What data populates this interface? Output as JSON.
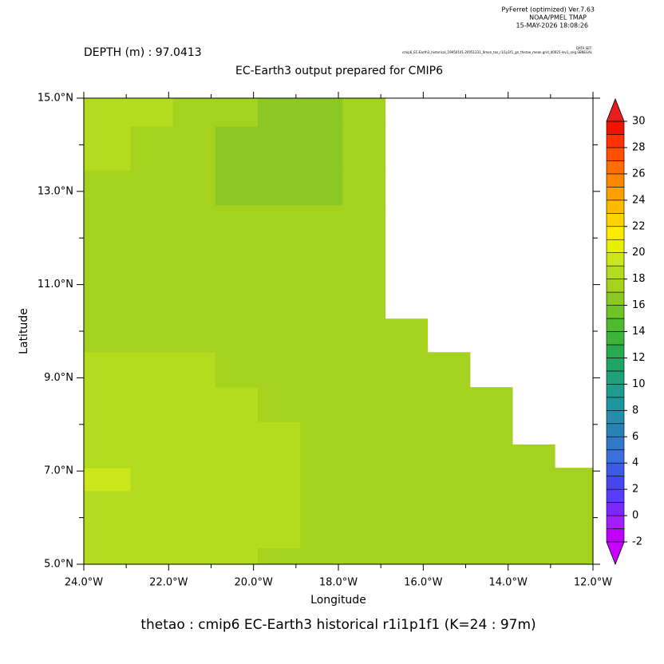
{
  "header": {
    "software": "PyFerret (optimized) Ver.7.63",
    "org": "NOAA/PMEL TMAP",
    "timestamp": "15-MAY-2026 18:08:26",
    "dataset_label": "DATA SET:",
    "dataset": "cmip6_EC-Earth3_historical_19950101-20051231_0mon_tos_r1i1p1f1_gn_thetao_mean.grid_d0025-lev1_orig.SENEGAL"
  },
  "chart_data": {
    "type": "heatmap",
    "depth_label": "DEPTH (m) : 97.0413",
    "title": "EC-Earth3 output prepared for CMIP6",
    "caption": "thetao : cmip6 EC-Earth3 historical r1i1p1f1   (K=24 : 97m)",
    "x_label": "Longitude",
    "y_label": "Latitude",
    "xlim": [
      -24,
      -12
    ],
    "ylim": [
      5,
      15
    ],
    "xticks": [
      {
        "value": -24,
        "label": "24.0°W"
      },
      {
        "value": -22,
        "label": "22.0°W"
      },
      {
        "value": -20,
        "label": "20.0°W"
      },
      {
        "value": -18,
        "label": "18.0°W"
      },
      {
        "value": -16,
        "label": "16.0°W"
      },
      {
        "value": -14,
        "label": "14.0°W"
      },
      {
        "value": -12,
        "label": "12.0°W"
      }
    ],
    "xminor": [
      -23,
      -21,
      -19,
      -17,
      -15,
      -13
    ],
    "yticks": [
      {
        "value": 5,
        "label": "5.0°N"
      },
      {
        "value": 7,
        "label": "7.0°N"
      },
      {
        "value": 9,
        "label": "9.0°N"
      },
      {
        "value": 11,
        "label": "11.0°N"
      },
      {
        "value": 13,
        "label": "13.0°N"
      },
      {
        "value": 15,
        "label": "15.0°N"
      }
    ],
    "yminor": [
      6,
      8,
      10,
      12,
      14
    ],
    "x_edges": [
      -24,
      -22.9,
      -21.9,
      -20.9,
      -19.9,
      -18.9,
      -17.9,
      -16.9,
      -15.9,
      -14.9,
      -13.9,
      -12.9,
      -12
    ],
    "y_edges": [
      5,
      5.35,
      6.58,
      7.07,
      7.57,
      8.06,
      8.8,
      9.55,
      10.27,
      12.71,
      13.46,
      14.4,
      15
    ],
    "z": [
      [
        18.5,
        18.5,
        18.5,
        18.5,
        17.5,
        17.5,
        17.5,
        17.5,
        17.5,
        17.5,
        17.5,
        17.5
      ],
      [
        18.5,
        18.5,
        18.5,
        18.5,
        18.5,
        17.5,
        17.5,
        17.5,
        17.5,
        17.5,
        17.5,
        17.5
      ],
      [
        19.5,
        18.5,
        18.5,
        18.5,
        18.5,
        17.5,
        17.5,
        17.5,
        17.5,
        17.5,
        17.5,
        17.5
      ],
      [
        18.5,
        18.5,
        18.5,
        18.5,
        18.5,
        17.5,
        17.5,
        17.5,
        17.5,
        17.5,
        17.5,
        null
      ],
      [
        18.5,
        18.5,
        18.5,
        18.5,
        18.5,
        17.5,
        17.5,
        17.5,
        17.5,
        17.5,
        null,
        null
      ],
      [
        18.5,
        18.5,
        18.5,
        18.5,
        17.5,
        17.5,
        17.5,
        17.5,
        17.5,
        17.5,
        null,
        null
      ],
      [
        18.5,
        18.5,
        18.5,
        17.5,
        17.5,
        17.5,
        17.5,
        17.5,
        17.5,
        null,
        null,
        null
      ],
      [
        17.5,
        17.5,
        17.5,
        17.5,
        17.5,
        17.5,
        17.5,
        17.5,
        null,
        null,
        null,
        null
      ],
      [
        17.5,
        17.5,
        17.5,
        17.5,
        17.5,
        17.5,
        17.5,
        null,
        null,
        null,
        null,
        null
      ],
      [
        17.5,
        17.5,
        17.5,
        16.5,
        16.5,
        16.5,
        17.5,
        null,
        null,
        null,
        null,
        null
      ],
      [
        18.5,
        17.5,
        17.5,
        16.5,
        16.5,
        16.5,
        17.5,
        null,
        null,
        null,
        null,
        null
      ],
      [
        18.5,
        18.5,
        17.5,
        17.5,
        16.5,
        16.5,
        17.5,
        null,
        null,
        null,
        null,
        null
      ]
    ],
    "clim": [
      -2,
      30
    ],
    "colorbar_ticks": [
      -2,
      0,
      2,
      4,
      6,
      8,
      10,
      12,
      14,
      16,
      18,
      20,
      22,
      24,
      26,
      28,
      30
    ],
    "colormap": [
      "#c000ff",
      "#a020ff",
      "#7a28ff",
      "#5a3cff",
      "#4646f0",
      "#3c5ae6",
      "#3c6edc",
      "#3278c8",
      "#2882b4",
      "#288caa",
      "#1e96a0",
      "#1e9b8c",
      "#1ea078",
      "#1ea564",
      "#28aa50",
      "#3cb43c",
      "#50b932",
      "#6ec328",
      "#8cc823",
      "#a5d21e",
      "#b4dc1e",
      "#cbe61a",
      "#e6f000",
      "#ffeb00",
      "#ffd200",
      "#ffb900",
      "#ffa000",
      "#ff8700",
      "#ff6e00",
      "#ff5000",
      "#ff3200",
      "#f01400"
    ],
    "under_color": "#c800ff",
    "over_color": "#e61e1e"
  }
}
